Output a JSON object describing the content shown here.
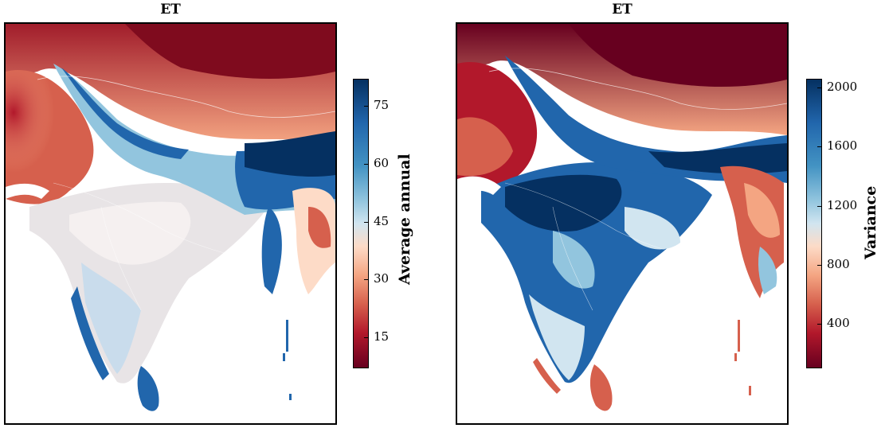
{
  "panels": [
    {
      "title": "ET",
      "colorbar": {
        "label": "Average annual",
        "ticks": [
          "75",
          "60",
          "45",
          "30",
          "15"
        ],
        "tick_values": [
          75,
          60,
          45,
          30,
          15
        ],
        "range": [
          7,
          82
        ],
        "colormap": "RdBu"
      }
    },
    {
      "title": "ET",
      "colorbar": {
        "label": "Variance",
        "ticks": [
          "2000",
          "1600",
          "1200",
          "800",
          "400"
        ],
        "tick_values": [
          2000,
          1600,
          1200,
          800,
          400
        ],
        "range": [
          100,
          2060
        ],
        "colormap": "RdBu"
      }
    }
  ],
  "colors": {
    "dark_red": "#67001f",
    "red": "#b2182b",
    "light_red": "#ef8a62",
    "pale": "#fddbc7",
    "white": "#f7f7f7",
    "pale_blue": "#d1e5f0",
    "light_blue": "#67a9cf",
    "blue": "#2166ac",
    "dark_blue": "#053061"
  }
}
